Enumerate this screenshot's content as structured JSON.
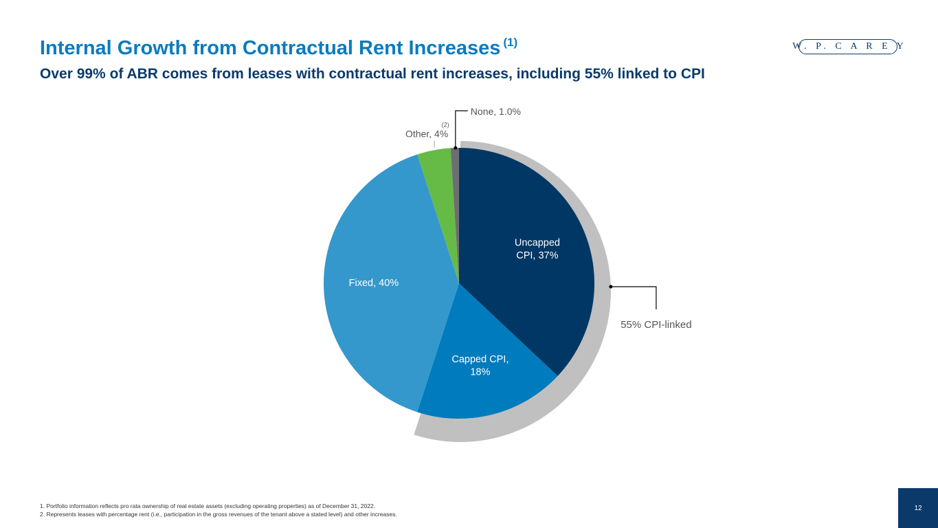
{
  "header": {
    "title": "Internal Growth from Contractual Rent Increases",
    "title_footnote": "(1)",
    "subtitle": "Over 99% of ABR comes from leases with contractual rent increases, including 55% linked to CPI",
    "logo_text": "W. P. C A R E Y"
  },
  "chart_data": {
    "type": "pie",
    "slices": [
      {
        "label_lines": [
          "Uncapped",
          "CPI, 37%"
        ],
        "value": 37,
        "color": "#003764",
        "text_color": "#ffffff"
      },
      {
        "label_lines": [
          "Capped CPI,",
          "18%"
        ],
        "value": 18,
        "color": "#007bbd",
        "text_color": "#ffffff"
      },
      {
        "label_lines": [
          "Fixed, 40%"
        ],
        "value": 40,
        "color": "#3498cc",
        "text_color": "#ffffff"
      },
      {
        "label_lines": [
          "Other, 4%"
        ],
        "label_footnote": "(2)",
        "value": 4,
        "color": "#66bb46",
        "text_color": "#555555"
      },
      {
        "label_lines": [
          "None, 1.0%"
        ],
        "value": 1,
        "color": "#6d6e71",
        "text_color": "#555555"
      }
    ],
    "bracket": {
      "label": "55% CPI-linked",
      "covers": [
        0,
        1
      ],
      "color": "#c0c0c0"
    }
  },
  "footnotes": [
    "1.  Portfolio information reflects pro rata ownership of real estate assets (excluding operating properties) as of December 31, 2022.",
    "2.  Represents leases with percentage rent (i.e., participation in the gross revenues of the tenant above a stated level) and other increases."
  ],
  "page_number": "12"
}
